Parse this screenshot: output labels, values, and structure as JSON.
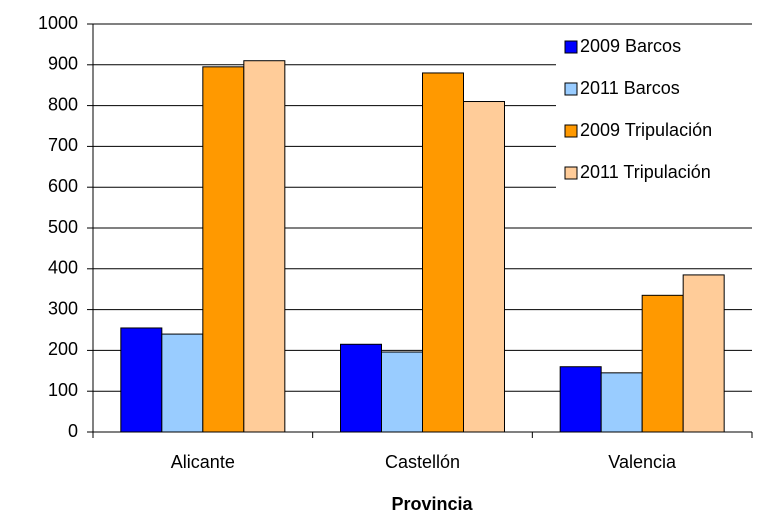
{
  "chart_data": {
    "type": "bar",
    "categories": [
      "Alicante",
      "Castellón",
      "Valencia"
    ],
    "x_label": "Provincia",
    "series": [
      {
        "name": "2009 Barcos",
        "color": "#0000ff",
        "values": [
          255,
          215,
          160
        ]
      },
      {
        "name": "2011 Barcos",
        "color": "#99ccff",
        "values": [
          240,
          196,
          145
        ]
      },
      {
        "name": "2009 Tripulación",
        "color": "#ff9900",
        "values": [
          895,
          880,
          335
        ]
      },
      {
        "name": "2011 Tripulación",
        "color": "#ffcc99",
        "values": [
          910,
          810,
          385
        ]
      }
    ],
    "ylim": [
      0,
      1000
    ],
    "yticks": [
      0,
      100,
      200,
      300,
      400,
      500,
      600,
      700,
      800,
      900,
      1000
    ],
    "grid": true,
    "legend": "top-right"
  }
}
